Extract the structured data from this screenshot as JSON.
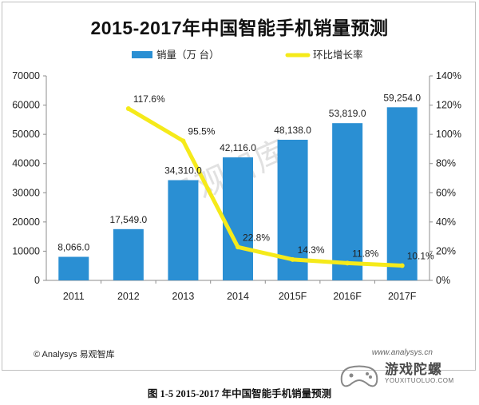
{
  "chart_data": {
    "type": "bar",
    "title": "2015-2017年中国智能手机销量预测",
    "categories": [
      "2011",
      "2012",
      "2013",
      "2014",
      "2015F",
      "2016F",
      "2017F"
    ],
    "series": [
      {
        "name": "销量（万 台）",
        "kind": "bar",
        "axis": "left",
        "color": "#2a8fd3",
        "values": [
          8066.0,
          17549.0,
          34310.0,
          42116.0,
          48138.0,
          53819.0,
          59254.0
        ],
        "labels": [
          "8,066.0",
          "17,549.0",
          "34,310.0",
          "42,116.0",
          "48,138.0",
          "53,819.0",
          "59,254.0"
        ]
      },
      {
        "name": "环比增长率",
        "kind": "line",
        "axis": "right",
        "color": "#f5ea1a",
        "values": [
          null,
          117.6,
          95.5,
          22.8,
          14.3,
          11.8,
          10.1
        ],
        "labels": [
          "",
          "117.6%",
          "95.5%",
          "22.8%",
          "14.3%",
          "11.8%",
          "10.1%"
        ]
      }
    ],
    "y_left": {
      "min": 0,
      "max": 70000,
      "ticks": [
        "0",
        "10000",
        "20000",
        "30000",
        "40000",
        "50000",
        "60000",
        "70000"
      ]
    },
    "y_right": {
      "min": 0,
      "max": 140,
      "ticks": [
        "0%",
        "20%",
        "40%",
        "60%",
        "80%",
        "100%",
        "120%",
        "140%"
      ]
    },
    "legend_position": "top-center",
    "grid": false
  },
  "watermark": "易观智库",
  "source": "© Analysys 易观智库",
  "site_url": "www.analysys.cn",
  "badge": {
    "name": "游戏陀螺",
    "domain": "YOUXITUOLUO.COM"
  },
  "caption": "图 1-5 2015-2017 年中国智能手机销量预测"
}
